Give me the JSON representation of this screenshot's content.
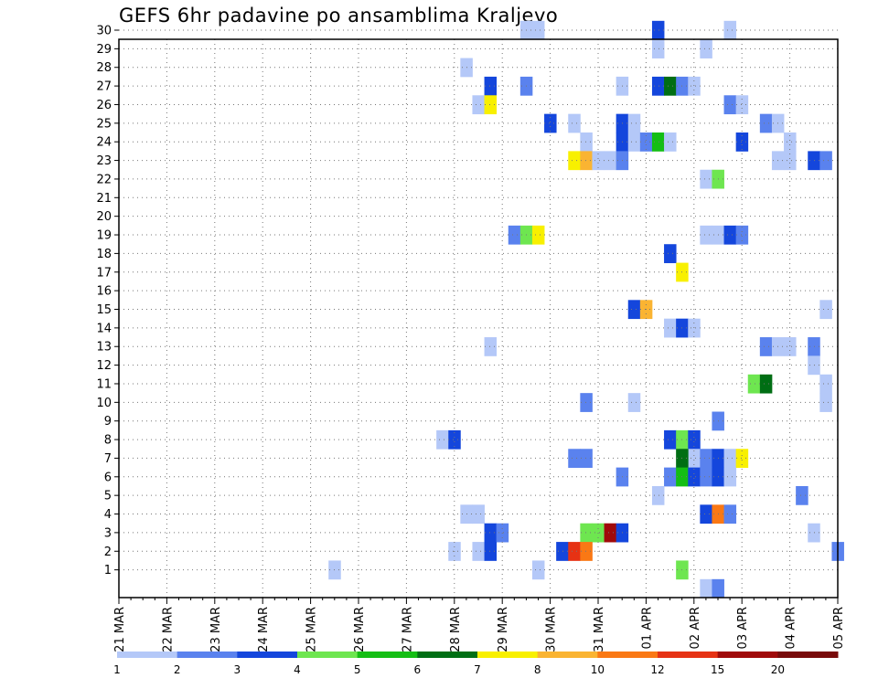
{
  "chart_data": {
    "type": "heatmap",
    "title": "GEFS 6hr padavine po ansamblima Kraljevo",
    "xlabel": "",
    "ylabel": "",
    "x_tick_labels": [
      "21 MAR",
      "22 MAR",
      "23 MAR",
      "24 MAR",
      "25 MAR",
      "26 MAR",
      "27 MAR",
      "28 MAR",
      "29 MAR",
      "30 MAR",
      "31 MAR",
      "01 APR",
      "02 APR",
      "03 APR",
      "04 APR",
      "05 APR"
    ],
    "y_tick_labels": [
      "1",
      "2",
      "3",
      "4",
      "5",
      "6",
      "7",
      "8",
      "9",
      "10",
      "11",
      "12",
      "13",
      "14",
      "15",
      "16",
      "17",
      "18",
      "19",
      "20",
      "21",
      "22",
      "23",
      "24",
      "25",
      "26",
      "27",
      "28",
      "29",
      "30"
    ],
    "xlim_steps": [
      0,
      60
    ],
    "ylim_members": [
      0.5,
      30.5
    ],
    "grid": true,
    "legend": {
      "position": "bottom",
      "thresholds": [
        "1",
        "2",
        "3",
        "4",
        "5",
        "6",
        "7",
        "8",
        "10",
        "12",
        "15",
        "20"
      ],
      "colors": [
        "#b4c8f8",
        "#5a82ee",
        "#1446dc",
        "#6ee650",
        "#14be14",
        "#006e14",
        "#f8f000",
        "#fab432",
        "#fa7814",
        "#e63214",
        "#a00a0a",
        "#780a0a"
      ]
    },
    "cells": [
      {
        "m": 30,
        "s": [
          34,
          35
        ],
        "c": 0
      },
      {
        "m": 30,
        "s": [
          45
        ],
        "c": 2
      },
      {
        "m": 30,
        "s": [
          51
        ],
        "c": 0
      },
      {
        "m": 29,
        "s": [
          45
        ],
        "c": 0
      },
      {
        "m": 29,
        "s": [
          49
        ],
        "c": 0
      },
      {
        "m": 28,
        "s": [
          29
        ],
        "c": 0
      },
      {
        "m": 27,
        "s": [
          31
        ],
        "c": 2
      },
      {
        "m": 27,
        "s": [
          34
        ],
        "c": 1
      },
      {
        "m": 27,
        "s": [
          42
        ],
        "c": 0
      },
      {
        "m": 27,
        "s": [
          45
        ],
        "c": 2
      },
      {
        "m": 27,
        "s": [
          46
        ],
        "c": 5
      },
      {
        "m": 27,
        "s": [
          47
        ],
        "c": 1
      },
      {
        "m": 27,
        "s": [
          48
        ],
        "c": 0
      },
      {
        "m": 26,
        "s": [
          30
        ],
        "c": 0
      },
      {
        "m": 26,
        "s": [
          31
        ],
        "c": 6
      },
      {
        "m": 26,
        "s": [
          51
        ],
        "c": 1
      },
      {
        "m": 26,
        "s": [
          52
        ],
        "c": 0
      },
      {
        "m": 25,
        "s": [
          36
        ],
        "c": 2
      },
      {
        "m": 25,
        "s": [
          38
        ],
        "c": 0
      },
      {
        "m": 25,
        "s": [
          42
        ],
        "c": 2
      },
      {
        "m": 25,
        "s": [
          43
        ],
        "c": 0
      },
      {
        "m": 25,
        "s": [
          54
        ],
        "c": 1
      },
      {
        "m": 25,
        "s": [
          55
        ],
        "c": 0
      },
      {
        "m": 24,
        "s": [
          39
        ],
        "c": 0
      },
      {
        "m": 24,
        "s": [
          42
        ],
        "c": 2
      },
      {
        "m": 24,
        "s": [
          43
        ],
        "c": 0
      },
      {
        "m": 24,
        "s": [
          44
        ],
        "c": 1
      },
      {
        "m": 24,
        "s": [
          45
        ],
        "c": 4
      },
      {
        "m": 24,
        "s": [
          46
        ],
        "c": 0
      },
      {
        "m": 24,
        "s": [
          52
        ],
        "c": 2
      },
      {
        "m": 24,
        "s": [
          56
        ],
        "c": 0
      },
      {
        "m": 23,
        "s": [
          38
        ],
        "c": 6
      },
      {
        "m": 23,
        "s": [
          39
        ],
        "c": 7
      },
      {
        "m": 23,
        "s": [
          40,
          41
        ],
        "c": 0
      },
      {
        "m": 23,
        "s": [
          42
        ],
        "c": 1
      },
      {
        "m": 23,
        "s": [
          55,
          56
        ],
        "c": 0
      },
      {
        "m": 23,
        "s": [
          58
        ],
        "c": 2
      },
      {
        "m": 23,
        "s": [
          59
        ],
        "c": 1
      },
      {
        "m": 22,
        "s": [
          49
        ],
        "c": 0
      },
      {
        "m": 22,
        "s": [
          50
        ],
        "c": 3
      },
      {
        "m": 19,
        "s": [
          33
        ],
        "c": 1
      },
      {
        "m": 19,
        "s": [
          34
        ],
        "c": 3
      },
      {
        "m": 19,
        "s": [
          35
        ],
        "c": 6
      },
      {
        "m": 19,
        "s": [
          49,
          50
        ],
        "c": 0
      },
      {
        "m": 19,
        "s": [
          51
        ],
        "c": 2
      },
      {
        "m": 19,
        "s": [
          52
        ],
        "c": 1
      },
      {
        "m": 18,
        "s": [
          46
        ],
        "c": 2
      },
      {
        "m": 17,
        "s": [
          47
        ],
        "c": 6
      },
      {
        "m": 16,
        "s": [],
        "c": 0
      },
      {
        "m": 15,
        "s": [
          43
        ],
        "c": 2
      },
      {
        "m": 15,
        "s": [
          44
        ],
        "c": 7
      },
      {
        "m": 15,
        "s": [
          59
        ],
        "c": 0
      },
      {
        "m": 14,
        "s": [
          46
        ],
        "c": 0
      },
      {
        "m": 14,
        "s": [
          47
        ],
        "c": 2
      },
      {
        "m": 14,
        "s": [
          48
        ],
        "c": 0
      },
      {
        "m": 13,
        "s": [
          31
        ],
        "c": 0
      },
      {
        "m": 13,
        "s": [
          54
        ],
        "c": 1
      },
      {
        "m": 13,
        "s": [
          55,
          56
        ],
        "c": 0
      },
      {
        "m": 13,
        "s": [
          58
        ],
        "c": 1
      },
      {
        "m": 12,
        "s": [
          58
        ],
        "c": 0
      },
      {
        "m": 11,
        "s": [
          53
        ],
        "c": 3
      },
      {
        "m": 11,
        "s": [
          54
        ],
        "c": 5
      },
      {
        "m": 11,
        "s": [
          59
        ],
        "c": 0
      },
      {
        "m": 10,
        "s": [
          39
        ],
        "c": 1
      },
      {
        "m": 10,
        "s": [
          43
        ],
        "c": 0
      },
      {
        "m": 10,
        "s": [
          59
        ],
        "c": 0
      },
      {
        "m": 9,
        "s": [
          50
        ],
        "c": 1
      },
      {
        "m": 8,
        "s": [
          27
        ],
        "c": 0
      },
      {
        "m": 8,
        "s": [
          28
        ],
        "c": 2
      },
      {
        "m": 8,
        "s": [
          46
        ],
        "c": 2
      },
      {
        "m": 8,
        "s": [
          47
        ],
        "c": 3
      },
      {
        "m": 8,
        "s": [
          48
        ],
        "c": 2
      },
      {
        "m": 7,
        "s": [
          38,
          39
        ],
        "c": 1
      },
      {
        "m": 7,
        "s": [
          48
        ],
        "c": 0
      },
      {
        "m": 7,
        "s": [
          47
        ],
        "c": 5
      },
      {
        "m": 7,
        "s": [
          49
        ],
        "c": 1
      },
      {
        "m": 7,
        "s": [
          50
        ],
        "c": 2
      },
      {
        "m": 7,
        "s": [
          51
        ],
        "c": 0
      },
      {
        "m": 7,
        "s": [
          52
        ],
        "c": 6
      },
      {
        "m": 6,
        "s": [
          42
        ],
        "c": 1
      },
      {
        "m": 6,
        "s": [
          46
        ],
        "c": 1
      },
      {
        "m": 6,
        "s": [
          47
        ],
        "c": 4
      },
      {
        "m": 6,
        "s": [
          48
        ],
        "c": 2
      },
      {
        "m": 6,
        "s": [
          49
        ],
        "c": 1
      },
      {
        "m": 6,
        "s": [
          50
        ],
        "c": 2
      },
      {
        "m": 6,
        "s": [
          51
        ],
        "c": 0
      },
      {
        "m": 5,
        "s": [
          45
        ],
        "c": 0
      },
      {
        "m": 5,
        "s": [
          57
        ],
        "c": 1
      },
      {
        "m": 4,
        "s": [
          29,
          30
        ],
        "c": 0
      },
      {
        "m": 4,
        "s": [
          49
        ],
        "c": 2
      },
      {
        "m": 4,
        "s": [
          50
        ],
        "c": 8
      },
      {
        "m": 4,
        "s": [
          51
        ],
        "c": 1
      },
      {
        "m": 3,
        "s": [
          31
        ],
        "c": 2
      },
      {
        "m": 3,
        "s": [
          32
        ],
        "c": 1
      },
      {
        "m": 3,
        "s": [
          39,
          40
        ],
        "c": 3
      },
      {
        "m": 3,
        "s": [
          41
        ],
        "c": 10
      },
      {
        "m": 3,
        "s": [
          42
        ],
        "c": 2
      },
      {
        "m": 3,
        "s": [
          58
        ],
        "c": 0
      },
      {
        "m": 2,
        "s": [
          28
        ],
        "c": 0
      },
      {
        "m": 2,
        "s": [
          30
        ],
        "c": 0
      },
      {
        "m": 2,
        "s": [
          31
        ],
        "c": 2
      },
      {
        "m": 2,
        "s": [
          37
        ],
        "c": 2
      },
      {
        "m": 2,
        "s": [
          38
        ],
        "c": 9
      },
      {
        "m": 2,
        "s": [
          39
        ],
        "c": 8
      },
      {
        "m": 2,
        "s": [
          60
        ],
        "c": 1
      },
      {
        "m": 1,
        "s": [
          18
        ],
        "c": 0
      },
      {
        "m": 1,
        "s": [
          35
        ],
        "c": 0
      },
      {
        "m": 1,
        "s": [
          47
        ],
        "c": 3
      },
      {
        "m": 0,
        "s": [
          49
        ],
        "c": 0
      },
      {
        "m": 0,
        "s": [
          50
        ],
        "c": 1
      }
    ]
  }
}
